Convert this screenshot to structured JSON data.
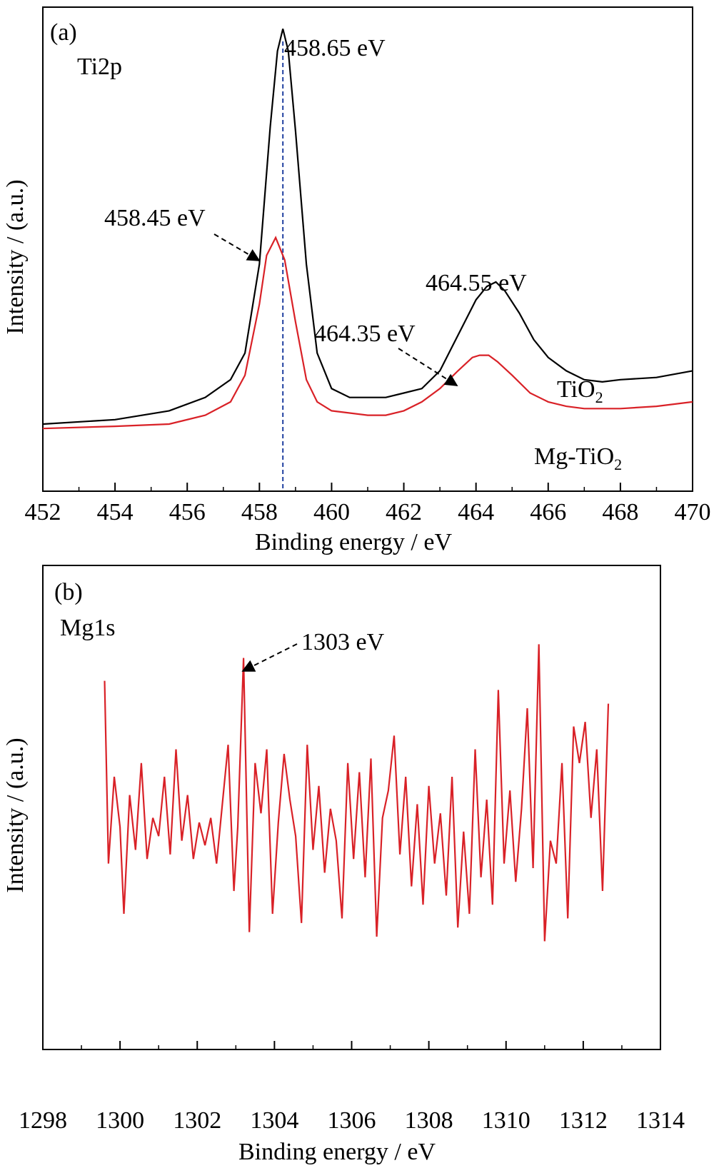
{
  "chart_data": [
    {
      "type": "line",
      "panel_label": "(a)",
      "element_label": "Ti2p",
      "xlabel": "Binding energy / eV",
      "ylabel": "Intensity / (a.u.)",
      "xlim": [
        452,
        470
      ],
      "ylim": [
        0,
        1
      ],
      "x_ticks": [
        "452",
        "454",
        "456",
        "458",
        "460",
        "462",
        "464",
        "466",
        "468",
        "470"
      ],
      "grid": false,
      "y_tick_labels": false,
      "series": [
        {
          "name": "TiO",
          "sub": "2",
          "color": "#000000",
          "x": [
            452.0,
            454.0,
            455.5,
            456.5,
            457.2,
            457.6,
            458.0,
            458.3,
            458.5,
            458.65,
            458.8,
            459.0,
            459.3,
            459.6,
            460.0,
            460.5,
            461.0,
            461.5,
            462.0,
            462.5,
            463.0,
            463.5,
            464.0,
            464.3,
            464.55,
            464.8,
            465.2,
            465.6,
            466.0,
            466.5,
            467.0,
            467.5,
            468.0,
            469.0,
            470.0
          ],
          "y": [
            0.09,
            0.1,
            0.12,
            0.15,
            0.19,
            0.25,
            0.45,
            0.76,
            0.93,
            0.98,
            0.93,
            0.75,
            0.45,
            0.25,
            0.17,
            0.15,
            0.15,
            0.15,
            0.16,
            0.17,
            0.21,
            0.29,
            0.37,
            0.4,
            0.41,
            0.39,
            0.34,
            0.28,
            0.24,
            0.21,
            0.19,
            0.185,
            0.19,
            0.195,
            0.21
          ]
        },
        {
          "name": "Mg-TiO",
          "sub": "2",
          "color": "#d92127",
          "x": [
            452.0,
            454.0,
            455.5,
            456.5,
            457.2,
            457.6,
            458.0,
            458.2,
            458.45,
            458.7,
            459.0,
            459.3,
            459.6,
            460.0,
            460.5,
            461.0,
            461.5,
            462.0,
            462.5,
            463.0,
            463.5,
            463.9,
            464.1,
            464.35,
            464.6,
            465.0,
            465.5,
            466.0,
            466.5,
            467.0,
            468.0,
            469.0,
            470.0
          ],
          "y": [
            0.08,
            0.085,
            0.09,
            0.11,
            0.14,
            0.2,
            0.36,
            0.47,
            0.51,
            0.46,
            0.32,
            0.19,
            0.14,
            0.12,
            0.115,
            0.11,
            0.11,
            0.12,
            0.14,
            0.17,
            0.21,
            0.24,
            0.245,
            0.245,
            0.23,
            0.2,
            0.16,
            0.14,
            0.13,
            0.125,
            0.125,
            0.13,
            0.14
          ]
        }
      ],
      "vline": {
        "x": 458.65,
        "color": "#1f3fa0"
      },
      "annotations": [
        {
          "text": "458.65 eV"
        },
        {
          "text": "458.45 eV"
        },
        {
          "text": "464.55 eV"
        },
        {
          "text": "464.35 eV"
        }
      ]
    },
    {
      "type": "line",
      "panel_label": "(b)",
      "element_label": "Mg1s",
      "xlabel": "Binding energy / eV",
      "ylabel": "Intensity / (a.u.)",
      "xlim": [
        1298,
        1314
      ],
      "ylim": [
        0,
        1
      ],
      "x_ticks": [
        "1298",
        "1300",
        "1302",
        "1304",
        "1306",
        "1308",
        "1310",
        "1312",
        "1314"
      ],
      "grid": false,
      "y_tick_labels": false,
      "series": [
        {
          "name": "Mg1s",
          "color": "#d92127",
          "x": [
            1299.6,
            1299.7,
            1299.85,
            1300.0,
            1300.1,
            1300.25,
            1300.4,
            1300.55,
            1300.7,
            1300.85,
            1301.0,
            1301.15,
            1301.3,
            1301.45,
            1301.6,
            1301.75,
            1301.9,
            1302.05,
            1302.2,
            1302.35,
            1302.5,
            1302.65,
            1302.8,
            1302.95,
            1303.05,
            1303.2,
            1303.35,
            1303.5,
            1303.65,
            1303.8,
            1303.95,
            1304.1,
            1304.25,
            1304.4,
            1304.55,
            1304.7,
            1304.85,
            1305.0,
            1305.15,
            1305.3,
            1305.45,
            1305.6,
            1305.75,
            1305.9,
            1306.05,
            1306.2,
            1306.35,
            1306.5,
            1306.65,
            1306.8,
            1306.95,
            1307.1,
            1307.25,
            1307.4,
            1307.55,
            1307.7,
            1307.85,
            1308.0,
            1308.15,
            1308.3,
            1308.45,
            1308.6,
            1308.75,
            1308.9,
            1309.05,
            1309.2,
            1309.35,
            1309.5,
            1309.65,
            1309.8,
            1309.95,
            1310.1,
            1310.25,
            1310.4,
            1310.55,
            1310.7,
            1310.85,
            1311.0,
            1311.15,
            1311.3,
            1311.45,
            1311.6,
            1311.75,
            1311.9,
            1312.05,
            1312.2,
            1312.35,
            1312.5,
            1312.65
          ],
          "y": [
            0.76,
            0.36,
            0.55,
            0.44,
            0.25,
            0.51,
            0.39,
            0.58,
            0.37,
            0.46,
            0.42,
            0.55,
            0.38,
            0.61,
            0.41,
            0.51,
            0.37,
            0.45,
            0.4,
            0.46,
            0.36,
            0.49,
            0.62,
            0.3,
            0.44,
            0.81,
            0.21,
            0.58,
            0.47,
            0.61,
            0.25,
            0.45,
            0.6,
            0.5,
            0.42,
            0.23,
            0.62,
            0.39,
            0.53,
            0.34,
            0.48,
            0.41,
            0.24,
            0.58,
            0.37,
            0.56,
            0.33,
            0.59,
            0.2,
            0.46,
            0.52,
            0.64,
            0.38,
            0.55,
            0.31,
            0.49,
            0.27,
            0.53,
            0.36,
            0.47,
            0.29,
            0.55,
            0.22,
            0.43,
            0.25,
            0.61,
            0.33,
            0.5,
            0.27,
            0.74,
            0.36,
            0.52,
            0.32,
            0.48,
            0.7,
            0.35,
            0.84,
            0.19,
            0.41,
            0.36,
            0.58,
            0.24,
            0.66,
            0.58,
            0.67,
            0.46,
            0.61,
            0.3,
            0.71
          ]
        }
      ],
      "annotations": [
        {
          "text": "1303 eV"
        }
      ]
    }
  ]
}
